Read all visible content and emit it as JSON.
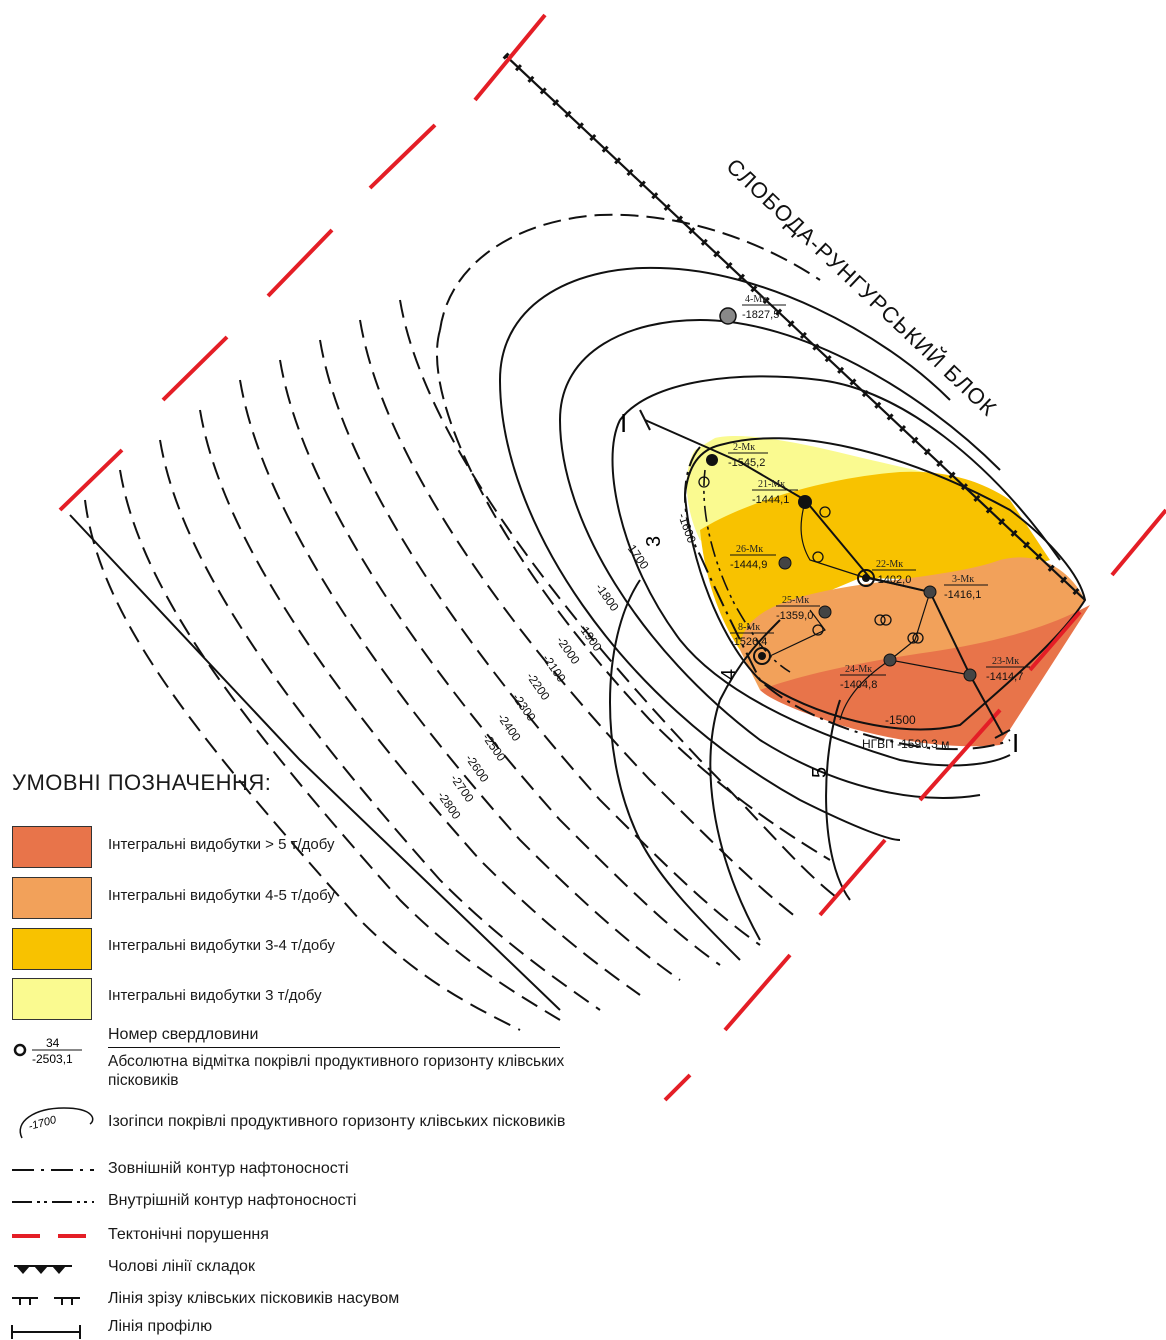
{
  "block_label": "СЛОБОДА-РУНГУРСЬКИЙ   БЛОК",
  "profile_line": {
    "start_label": "I",
    "end_label": "I"
  },
  "contour_labels": [
    "-1500",
    "-1600",
    "-1700",
    "-1800",
    "-1900",
    "-2000",
    "-2100",
    "-2200",
    "-2300",
    "-2400",
    "-2500",
    "-2600",
    "-2700",
    "-2800"
  ],
  "section_labels": [
    "3",
    "4",
    "5"
  ],
  "owc_label": "НГВП -1590,3 м",
  "wells": [
    {
      "num": "4-Мк",
      "elev": "-1827,5"
    },
    {
      "num": "2-Мк",
      "elev": "-1545,2"
    },
    {
      "num": "21-Мк",
      "elev": "-1444,1"
    },
    {
      "num": "26-Мк",
      "elev": "-1444,9"
    },
    {
      "num": "22-Мк",
      "elev": "-1402,0"
    },
    {
      "num": "3-Мк",
      "elev": "-1416,1"
    },
    {
      "num": "25-Мк",
      "elev": "-1359,0"
    },
    {
      "num": "8-Мк",
      "elev": "-1526,4"
    },
    {
      "num": "24-Мк",
      "elev": "-1404,8"
    },
    {
      "num": "23-Мк",
      "elev": "-1414,7"
    }
  ],
  "legend": {
    "title": "УМОВНІ ПОЗНАЧЕННЯ:",
    "zones": [
      {
        "label": "Інтегральні видобутки  > 5 т/добу",
        "color": "#e8744a"
      },
      {
        "label": "Інтегральні видобутки    4-5 т/добу",
        "color": "#f2a15a"
      },
      {
        "label": "Інтегральні видобутки    3-4 т/добу",
        "color": "#f8c200"
      },
      {
        "label": "Інтегральні видобутки      3 т/добу",
        "color": "#fafa90"
      }
    ],
    "well_sample": {
      "num": "34",
      "elev": "-2503,1"
    },
    "well_num_label": "Номер свердловини",
    "well_elev_label": "Абсолютна відмітка покрівлі продуктивного горизонту клівських пісковиків",
    "isohypse_sample": "-1700",
    "isohypse_label": "Ізогіпси покрівлі продуктивного горизонту клівських пісковиків",
    "outer_contour": "Зовнішній контур нафтоносності",
    "inner_contour": "Внутрішній контур нафтоносності",
    "faults": "Тектонічні порушення",
    "fold_lines": "Чолові лінії складок",
    "thrust_cut": "Лінія зрізу клівських пісковиків насувом",
    "profile": "Лінія профілю"
  },
  "colors": {
    "fault": "#e41e26",
    "zone_gt5": "#e8744a",
    "zone_45": "#f2a15a",
    "zone_34": "#f8c200",
    "zone_3": "#fafa90"
  }
}
